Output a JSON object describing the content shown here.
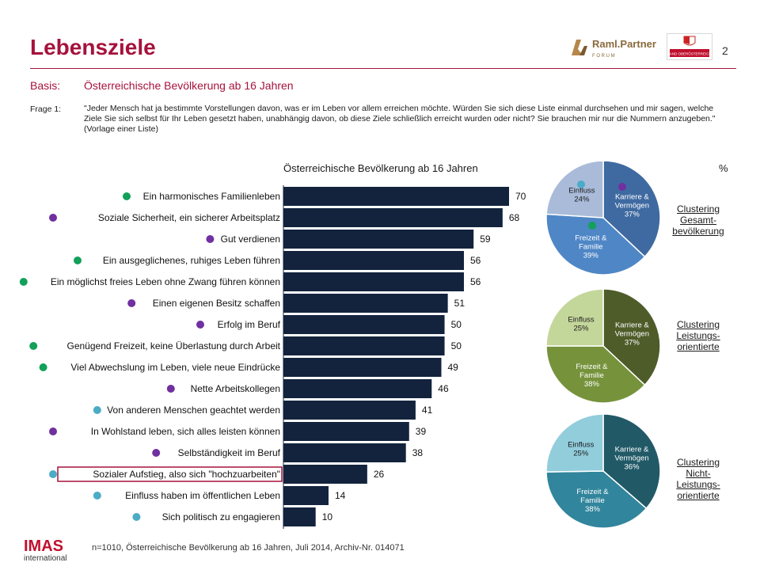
{
  "header": {
    "title": "Lebensziele",
    "page_number": "2",
    "logo_raml_text": "Raml.Partner",
    "logo_raml_sub": "F O R U M",
    "logo_ooe_text": "LAND OBERÖSTERREICH"
  },
  "basis": {
    "label": "Basis:",
    "text": "Österreichische Bevölkerung ab 16 Jahren"
  },
  "question": {
    "label": "Frage 1:",
    "text": "\"Jeder Mensch hat ja bestimmte Vorstellungen davon, was er im Leben vor allem erreichen möchte. Würden Sie sich diese Liste einmal durchsehen und mir sagen, welche Ziele Sie sich selbst für Ihr Leben gesetzt haben, unabhängig davon, ob diese Ziele schließlich erreicht wurden oder nicht? Sie brauchen mir nur die Nummern anzugeben.\" (Vorlage einer Liste)"
  },
  "chart_data": [
    {
      "type": "bar",
      "orientation": "horizontal",
      "title": "Österreichische Bevölkerung ab 16 Jahren",
      "unit_label": "%",
      "bar_color": "#13233d",
      "categories": [
        "Ein harmonisches Familienleben",
        "Soziale Sicherheit, ein sicherer Arbeitsplatz",
        "Gut verdienen",
        "Ein ausgeglichenes, ruhiges Leben führen",
        "Ein möglichst freies Leben ohne Zwang führen können",
        "Einen eigenen Besitz schaffen",
        "Erfolg im Beruf",
        "Genügend Freizeit, keine Überlastung durch Arbeit",
        "Viel Abwechslung im Leben, viele neue Eindrücke",
        "Nette Arbeitskollegen",
        "Von anderen Menschen geachtet werden",
        "In Wohlstand leben, sich alles leisten können",
        "Selbständigkeit im Beruf",
        "Sozialer Aufstieg, also sich \"hochzuarbeiten\"",
        "Einfluss haben im öffentlichen Leben",
        "Sich politisch zu engagieren"
      ],
      "values": [
        70,
        68,
        59,
        56,
        56,
        51,
        50,
        50,
        49,
        46,
        41,
        39,
        38,
        26,
        14,
        10
      ],
      "cluster": [
        "familie",
        "karriere",
        "karriere",
        "familie",
        "familie",
        "karriere",
        "karriere",
        "familie",
        "familie",
        "karriere",
        "einfluss",
        "karriere",
        "karriere",
        "einfluss",
        "einfluss",
        "einfluss"
      ],
      "highlighted_category": "Sozialer Aufstieg, also sich \"hochzuarbeiten\"",
      "xlim": [
        0,
        80
      ]
    },
    {
      "type": "pie",
      "title": "Clustering Gesamt-bevölkerung",
      "slices": [
        {
          "label": "Karriere & Vermögen",
          "value": 37,
          "color": "#3f6aa1"
        },
        {
          "label": "Freizeit & Familie",
          "value": 39,
          "color": "#4f86c6"
        },
        {
          "label": "Einfluss",
          "value": 24,
          "color": "#a9bbd9"
        }
      ]
    },
    {
      "type": "pie",
      "title": "Clustering Leistungs-orientierte",
      "slices": [
        {
          "label": "Karriere & Vermögen",
          "value": 37,
          "color": "#4e5c2a"
        },
        {
          "label": "Freizeit & Familie",
          "value": 38,
          "color": "#76933c"
        },
        {
          "label": "Einfluss",
          "value": 25,
          "color": "#c4d79b"
        }
      ]
    },
    {
      "type": "pie",
      "title": "Clustering Nicht-Leistungs-orientierte",
      "slices": [
        {
          "label": "Karriere & Vermögen",
          "value": 36,
          "color": "#215967"
        },
        {
          "label": "Freizeit & Familie",
          "value": 38,
          "color": "#31859c"
        },
        {
          "label": "Einfluss",
          "value": 25,
          "color": "#92cddc"
        }
      ]
    }
  ],
  "legend_dots": {
    "familie": "#12a05a",
    "karriere": "#7030a0",
    "einfluss": "#4bacc6"
  },
  "cluster_labels": [
    {
      "line1": "Clustering",
      "line2": "Gesamt-",
      "line3": "bevölkerung"
    },
    {
      "line1": "Clustering",
      "line2": "Leistungs-",
      "line3": "orientierte"
    },
    {
      "line1": "Clustering",
      "line2": "Nicht-",
      "line3": "Leistungs-",
      "line4": "orientierte"
    }
  ],
  "footer": {
    "source": "n=1010, Österreichische Bevölkerung ab 16 Jahren, Juli 2014, Archiv-Nr. 014071",
    "imas_logo": "IMAS",
    "imas_sub": "international"
  }
}
